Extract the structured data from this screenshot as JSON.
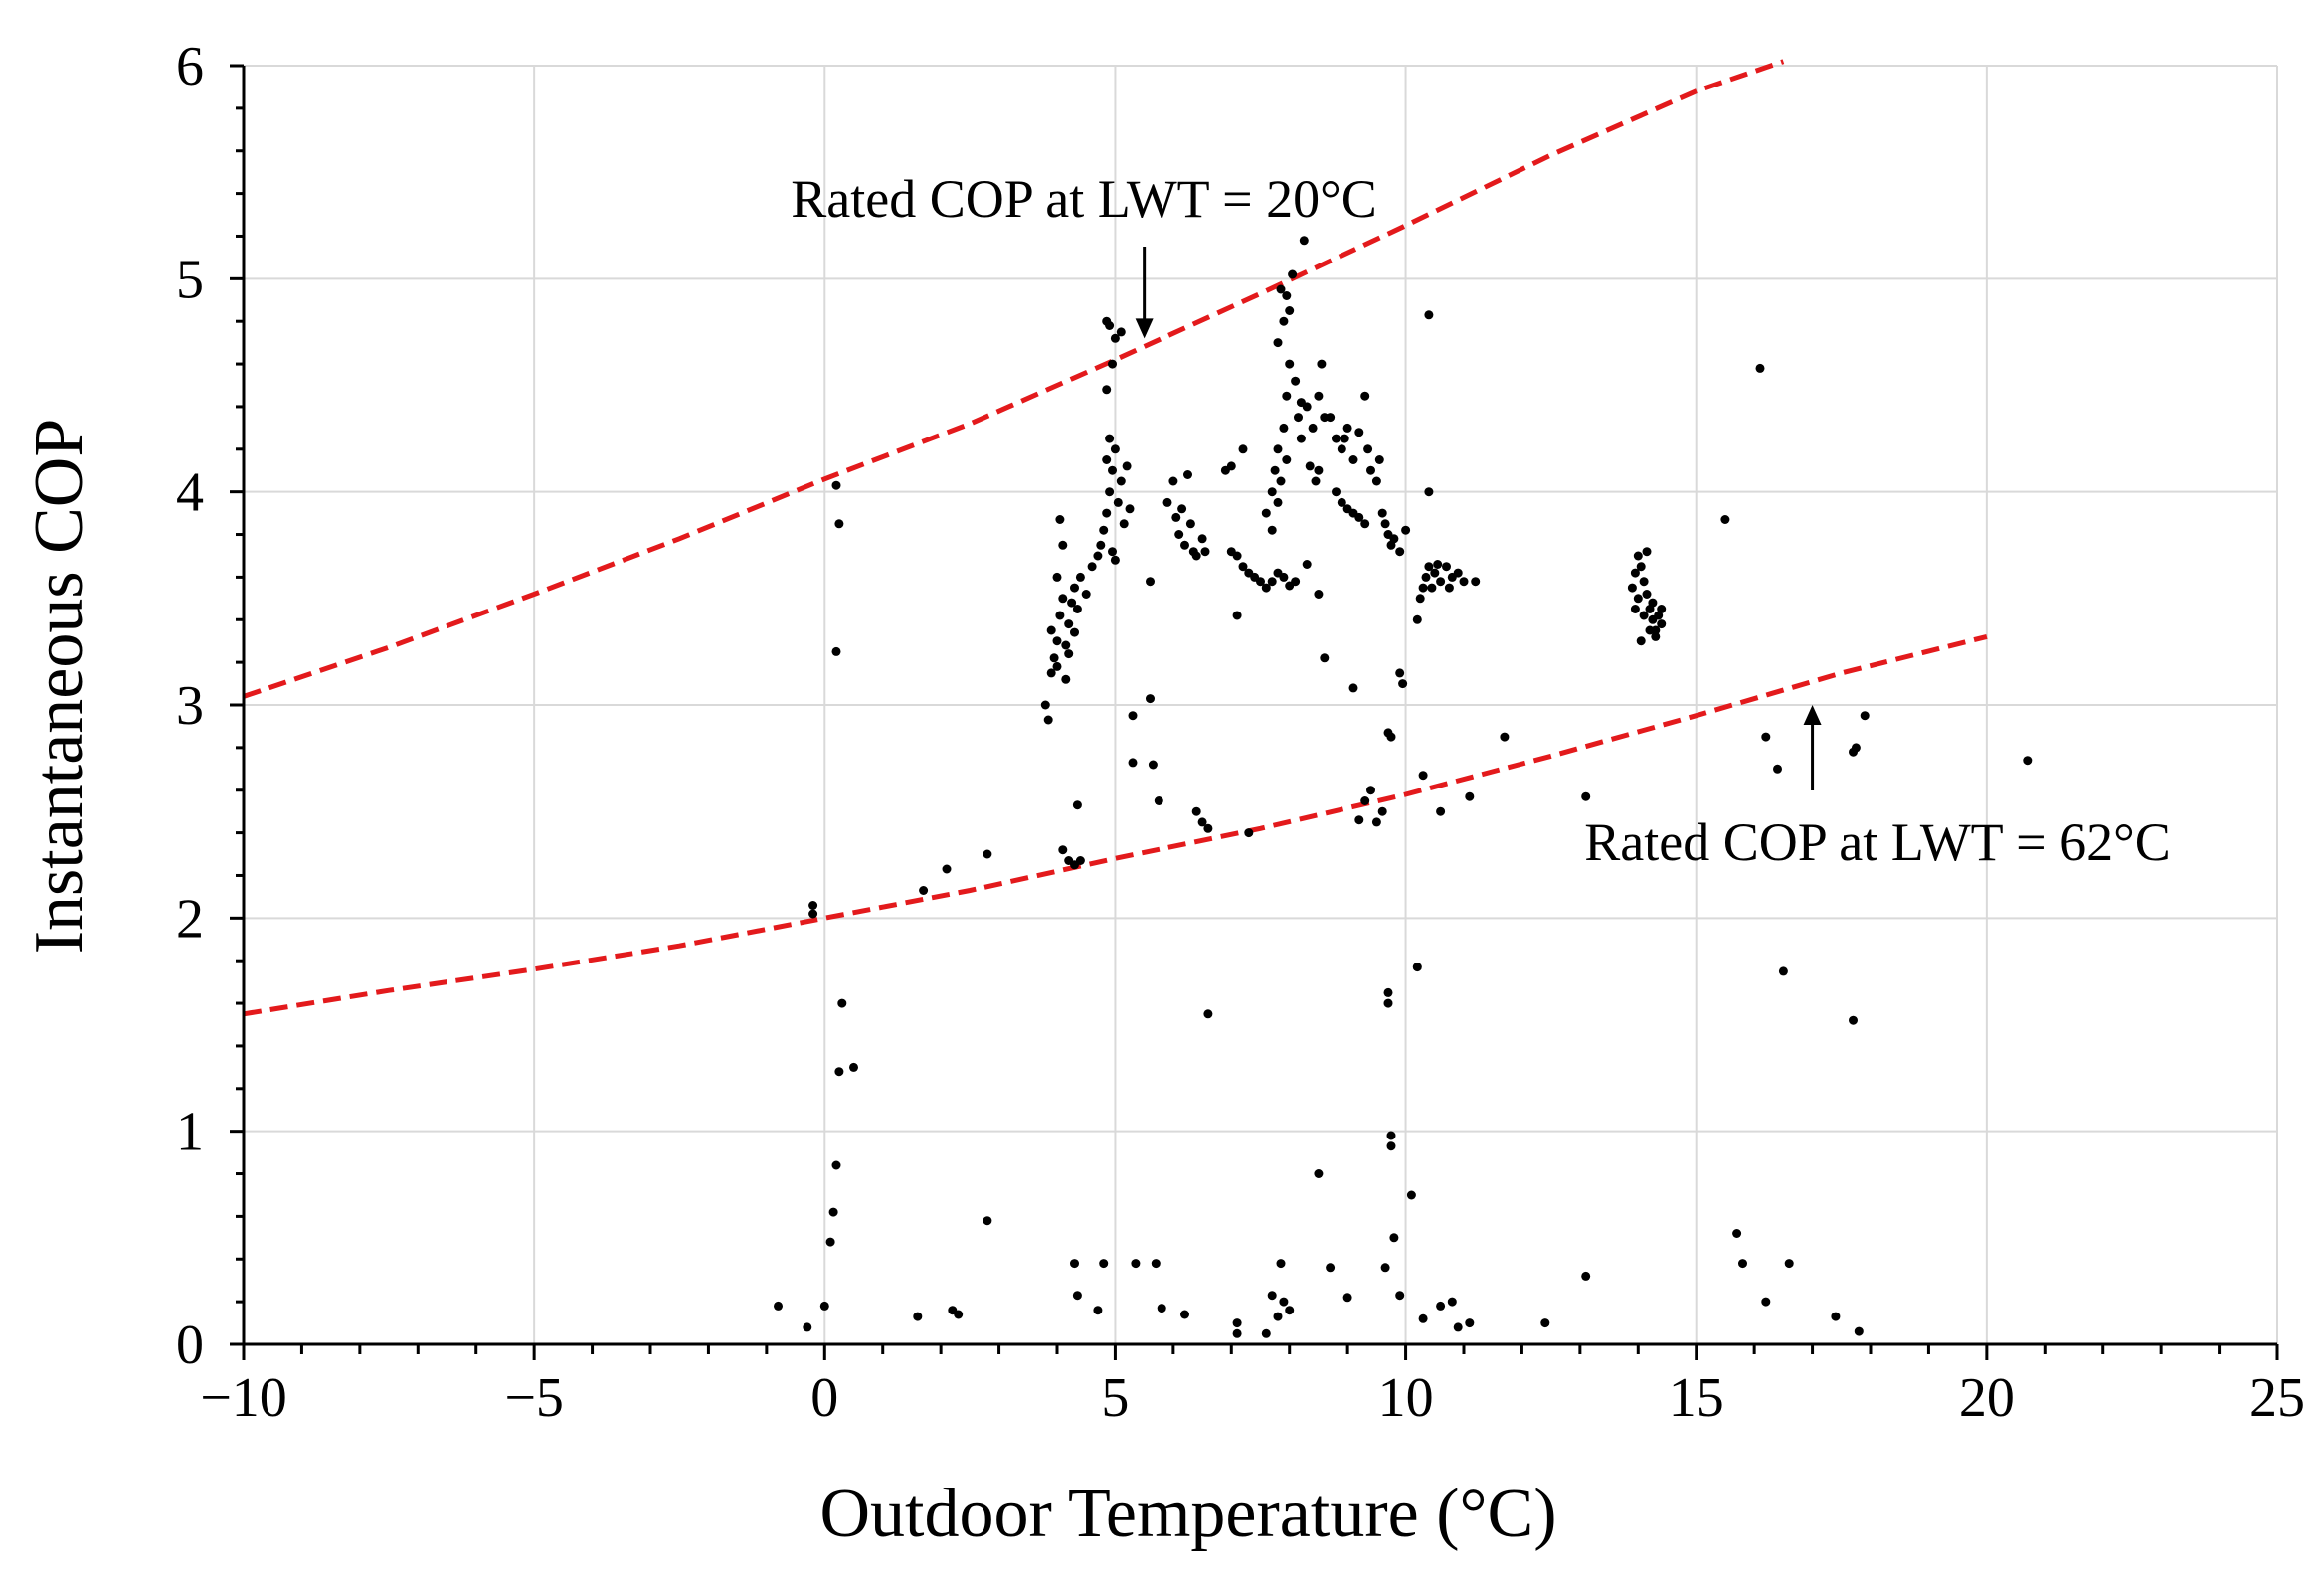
{
  "chart_data": {
    "type": "scatter",
    "title": "",
    "xlabel": "Outdoor Temperature (°C)",
    "ylabel": "Instantaneous COP",
    "xlim": [
      -10,
      25
    ],
    "ylim": [
      0,
      6
    ],
    "xticks": [
      -10,
      -5,
      0,
      5,
      10,
      15,
      20,
      25
    ],
    "xtick_labels": [
      "−10",
      "−5",
      "0",
      "5",
      "10",
      "15",
      "20",
      "25"
    ],
    "yticks": [
      0,
      1,
      2,
      3,
      4,
      5,
      6
    ],
    "ytick_labels": [
      "0",
      "1",
      "2",
      "3",
      "4",
      "5",
      "6"
    ],
    "grid": true,
    "colors": {
      "curve": "#e31a1c",
      "points": "#000000",
      "grid": "#d9d9d9"
    },
    "curves": [
      {
        "name": "Rated COP at LWT = 20°C",
        "style": "dashed",
        "x": [
          -10,
          -7.5,
          -5,
          -2.5,
          0,
          2.5,
          5,
          7.5,
          10,
          12.5,
          15,
          16.5
        ],
        "y": [
          3.04,
          3.27,
          3.52,
          3.78,
          4.06,
          4.32,
          4.62,
          4.93,
          5.25,
          5.58,
          5.88,
          6.02
        ]
      },
      {
        "name": "Rated COP at LWT = 62°C",
        "style": "dashed",
        "x": [
          -10,
          -7.5,
          -5,
          -2.5,
          0,
          2.5,
          5,
          7.5,
          10,
          12.5,
          15,
          17.5,
          20
        ],
        "y": [
          1.55,
          1.66,
          1.76,
          1.87,
          2.0,
          2.13,
          2.28,
          2.42,
          2.58,
          2.76,
          2.95,
          3.15,
          3.32
        ]
      }
    ],
    "annotations": [
      {
        "text": "Rated COP at LWT = 20°C",
        "arrow_to": [
          5.5,
          4.72
        ]
      },
      {
        "text": "Rated COP at LWT = 62°C",
        "arrow_to": [
          17.0,
          3.0
        ]
      }
    ],
    "points": [
      [
        -0.8,
        0.18
      ],
      [
        -0.3,
        0.08
      ],
      [
        -0.2,
        2.06
      ],
      [
        -0.2,
        2.02
      ],
      [
        0.0,
        0.18
      ],
      [
        0.1,
        0.48
      ],
      [
        0.15,
        0.62
      ],
      [
        0.2,
        0.84
      ],
      [
        0.25,
        1.28
      ],
      [
        0.3,
        1.6
      ],
      [
        0.2,
        3.25
      ],
      [
        0.25,
        3.85
      ],
      [
        0.2,
        4.03
      ],
      [
        0.5,
        1.3
      ],
      [
        1.6,
        0.13
      ],
      [
        1.7,
        2.13
      ],
      [
        2.1,
        2.23
      ],
      [
        2.2,
        0.16
      ],
      [
        2.3,
        0.14
      ],
      [
        2.8,
        2.3
      ],
      [
        2.8,
        0.58
      ],
      [
        3.8,
        3.0
      ],
      [
        3.85,
        2.93
      ],
      [
        3.9,
        3.15
      ],
      [
        3.95,
        3.22
      ],
      [
        4.0,
        3.3
      ],
      [
        4.05,
        3.42
      ],
      [
        4.1,
        3.5
      ],
      [
        4.15,
        3.28
      ],
      [
        4.2,
        3.38
      ],
      [
        4.0,
        3.6
      ],
      [
        4.1,
        3.75
      ],
      [
        4.05,
        3.87
      ],
      [
        4.25,
        3.48
      ],
      [
        4.3,
        3.55
      ],
      [
        4.35,
        3.45
      ],
      [
        4.4,
        3.6
      ],
      [
        4.5,
        3.52
      ],
      [
        4.6,
        3.65
      ],
      [
        4.7,
        3.7
      ],
      [
        4.0,
        3.18
      ],
      [
        4.2,
        3.24
      ],
      [
        4.3,
        3.34
      ],
      [
        3.9,
        3.35
      ],
      [
        4.15,
        3.12
      ],
      [
        4.1,
        2.32
      ],
      [
        4.2,
        2.27
      ],
      [
        4.3,
        2.25
      ],
      [
        4.4,
        2.27
      ],
      [
        4.35,
        2.53
      ],
      [
        4.3,
        0.38
      ],
      [
        4.35,
        0.23
      ],
      [
        4.7,
        0.16
      ],
      [
        4.8,
        0.38
      ],
      [
        4.75,
        3.75
      ],
      [
        4.8,
        3.82
      ],
      [
        4.85,
        3.9
      ],
      [
        4.9,
        4.0
      ],
      [
        4.95,
        4.1
      ],
      [
        5.0,
        4.2
      ],
      [
        4.85,
        4.15
      ],
      [
        4.9,
        4.25
      ],
      [
        5.05,
        3.95
      ],
      [
        5.1,
        4.05
      ],
      [
        5.15,
        3.85
      ],
      [
        4.95,
        3.72
      ],
      [
        5.0,
        3.68
      ],
      [
        4.85,
        4.48
      ],
      [
        4.95,
        4.6
      ],
      [
        5.0,
        4.72
      ],
      [
        4.85,
        4.8
      ],
      [
        4.9,
        4.78
      ],
      [
        5.1,
        4.75
      ],
      [
        5.2,
        4.12
      ],
      [
        5.25,
        3.92
      ],
      [
        5.3,
        2.95
      ],
      [
        5.3,
        2.73
      ],
      [
        5.35,
        0.38
      ],
      [
        5.6,
        3.58
      ],
      [
        5.6,
        3.03
      ],
      [
        5.65,
        2.72
      ],
      [
        5.7,
        0.38
      ],
      [
        5.75,
        2.55
      ],
      [
        5.8,
        0.17
      ],
      [
        6.2,
        0.14
      ],
      [
        5.9,
        3.95
      ],
      [
        6.0,
        4.05
      ],
      [
        6.05,
        3.88
      ],
      [
        6.1,
        3.8
      ],
      [
        6.15,
        3.92
      ],
      [
        6.2,
        3.75
      ],
      [
        6.3,
        3.85
      ],
      [
        6.35,
        3.72
      ],
      [
        6.4,
        3.7
      ],
      [
        6.5,
        3.78
      ],
      [
        6.55,
        3.72
      ],
      [
        6.25,
        4.08
      ],
      [
        6.4,
        2.5
      ],
      [
        6.5,
        2.45
      ],
      [
        6.6,
        2.42
      ],
      [
        6.6,
        1.55
      ],
      [
        6.9,
        4.1
      ],
      [
        7.0,
        4.12
      ],
      [
        7.2,
        4.2
      ],
      [
        7.0,
        3.72
      ],
      [
        7.1,
        3.7
      ],
      [
        7.2,
        3.65
      ],
      [
        7.3,
        3.62
      ],
      [
        7.4,
        3.6
      ],
      [
        7.5,
        3.58
      ],
      [
        7.6,
        3.55
      ],
      [
        7.7,
        3.58
      ],
      [
        7.8,
        3.62
      ],
      [
        7.9,
        3.6
      ],
      [
        8.0,
        3.56
      ],
      [
        8.1,
        3.58
      ],
      [
        8.3,
        3.66
      ],
      [
        8.5,
        3.52
      ],
      [
        7.1,
        3.42
      ],
      [
        7.3,
        2.4
      ],
      [
        7.6,
        3.9
      ],
      [
        7.7,
        4.0
      ],
      [
        7.75,
        4.1
      ],
      [
        7.8,
        4.2
      ],
      [
        7.85,
        4.05
      ],
      [
        7.9,
        4.3
      ],
      [
        7.95,
        4.45
      ],
      [
        8.0,
        4.6
      ],
      [
        7.8,
        4.7
      ],
      [
        7.9,
        4.8
      ],
      [
        7.95,
        4.92
      ],
      [
        8.05,
        5.02
      ],
      [
        7.85,
        4.95
      ],
      [
        8.0,
        4.85
      ],
      [
        8.1,
        4.52
      ],
      [
        8.15,
        4.35
      ],
      [
        8.2,
        4.42
      ],
      [
        8.3,
        4.4
      ],
      [
        8.4,
        4.3
      ],
      [
        8.5,
        4.45
      ],
      [
        8.55,
        4.6
      ],
      [
        8.6,
        4.35
      ],
      [
        8.35,
        4.12
      ],
      [
        8.45,
        4.05
      ],
      [
        8.5,
        4.1
      ],
      [
        7.7,
        3.82
      ],
      [
        7.8,
        3.95
      ],
      [
        8.25,
        5.18
      ],
      [
        7.95,
        4.15
      ],
      [
        8.2,
        4.25
      ],
      [
        8.7,
        4.35
      ],
      [
        8.8,
        4.25
      ],
      [
        8.9,
        4.2
      ],
      [
        9.0,
        4.3
      ],
      [
        9.1,
        4.15
      ],
      [
        9.2,
        4.28
      ],
      [
        9.3,
        4.45
      ],
      [
        9.35,
        4.2
      ],
      [
        9.4,
        4.1
      ],
      [
        9.5,
        4.05
      ],
      [
        9.55,
        4.15
      ],
      [
        9.6,
        3.9
      ],
      [
        9.65,
        3.85
      ],
      [
        9.7,
        3.8
      ],
      [
        9.75,
        3.75
      ],
      [
        9.8,
        3.78
      ],
      [
        9.9,
        3.72
      ],
      [
        10.0,
        3.82
      ],
      [
        8.8,
        4.0
      ],
      [
        8.9,
        3.95
      ],
      [
        9.0,
        3.92
      ],
      [
        9.1,
        3.9
      ],
      [
        9.2,
        3.88
      ],
      [
        9.3,
        3.85
      ],
      [
        8.95,
        4.25
      ],
      [
        8.7,
        0.36
      ],
      [
        8.5,
        0.8
      ],
      [
        8.6,
        3.22
      ],
      [
        9.0,
        0.22
      ],
      [
        9.1,
        3.08
      ],
      [
        9.2,
        2.46
      ],
      [
        9.3,
        2.55
      ],
      [
        9.4,
        2.6
      ],
      [
        9.5,
        2.45
      ],
      [
        9.6,
        2.5
      ],
      [
        9.65,
        0.36
      ],
      [
        9.7,
        1.6
      ],
      [
        9.7,
        1.65
      ],
      [
        9.75,
        0.93
      ],
      [
        9.75,
        0.98
      ],
      [
        9.8,
        0.5
      ],
      [
        9.7,
        2.87
      ],
      [
        9.75,
        2.85
      ],
      [
        9.9,
        3.15
      ],
      [
        9.95,
        3.1
      ],
      [
        9.9,
        0.23
      ],
      [
        10.1,
        0.7
      ],
      [
        10.2,
        1.77
      ],
      [
        10.3,
        0.12
      ],
      [
        10.4,
        4.83
      ],
      [
        10.4,
        4.0
      ],
      [
        10.3,
        2.67
      ],
      [
        10.6,
        2.5
      ],
      [
        10.6,
        0.18
      ],
      [
        10.8,
        0.2
      ],
      [
        10.9,
        0.08
      ],
      [
        11.1,
        2.57
      ],
      [
        11.1,
        0.1
      ],
      [
        11.7,
        2.85
      ],
      [
        12.4,
        0.1
      ],
      [
        13.1,
        0.32
      ],
      [
        13.1,
        2.57
      ],
      [
        7.1,
        0.1
      ],
      [
        7.1,
        0.05
      ],
      [
        7.6,
        0.05
      ],
      [
        7.8,
        0.13
      ],
      [
        7.85,
        0.38
      ],
      [
        7.7,
        0.23
      ],
      [
        7.9,
        0.2
      ],
      [
        8.0,
        0.16
      ],
      [
        10.2,
        3.4
      ],
      [
        10.25,
        3.5
      ],
      [
        10.3,
        3.55
      ],
      [
        10.35,
        3.6
      ],
      [
        10.4,
        3.65
      ],
      [
        10.5,
        3.62
      ],
      [
        10.6,
        3.58
      ],
      [
        10.7,
        3.65
      ],
      [
        10.8,
        3.6
      ],
      [
        10.9,
        3.62
      ],
      [
        11.0,
        3.58
      ],
      [
        11.2,
        3.58
      ],
      [
        10.45,
        3.55
      ],
      [
        10.55,
        3.66
      ],
      [
        10.75,
        3.55
      ],
      [
        13.9,
        3.55
      ],
      [
        13.95,
        3.62
      ],
      [
        14.0,
        3.7
      ],
      [
        14.05,
        3.65
      ],
      [
        14.1,
        3.58
      ],
      [
        14.15,
        3.52
      ],
      [
        14.2,
        3.45
      ],
      [
        14.25,
        3.4
      ],
      [
        14.3,
        3.35
      ],
      [
        14.35,
        3.42
      ],
      [
        14.4,
        3.38
      ],
      [
        14.0,
        3.5
      ],
      [
        14.1,
        3.42
      ],
      [
        14.2,
        3.35
      ],
      [
        14.3,
        3.32
      ],
      [
        14.05,
        3.3
      ],
      [
        13.95,
        3.45
      ],
      [
        14.15,
        3.72
      ],
      [
        14.25,
        3.48
      ],
      [
        14.4,
        3.45
      ],
      [
        15.5,
        3.87
      ],
      [
        15.7,
        0.52
      ],
      [
        15.8,
        0.38
      ],
      [
        16.1,
        4.58
      ],
      [
        16.2,
        2.85
      ],
      [
        16.2,
        0.2
      ],
      [
        16.4,
        2.7
      ],
      [
        16.5,
        1.75
      ],
      [
        16.6,
        0.38
      ],
      [
        17.4,
        0.13
      ],
      [
        17.7,
        2.78
      ],
      [
        17.75,
        2.8
      ],
      [
        17.7,
        1.52
      ],
      [
        17.8,
        0.06
      ],
      [
        17.9,
        2.95
      ],
      [
        20.7,
        2.74
      ]
    ]
  }
}
